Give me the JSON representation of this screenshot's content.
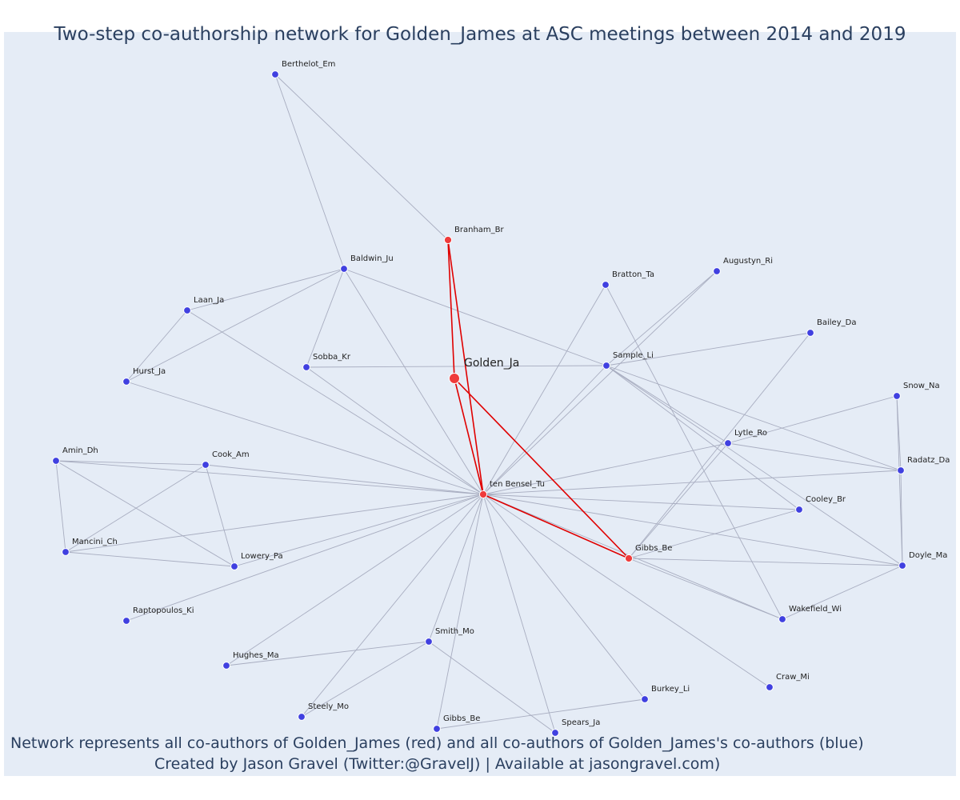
{
  "title": "Two-step co-authorship network for Golden_James at ASC meetings between 2014 and 2019",
  "footer": {
    "line1": "Network represents all co-authors of Golden_James (red) and all co-authors of Golden_James's co-authors (blue)",
    "line2": "Created by Jason Gravel (Twitter:@GravelJ) | Available at jasongravel.com)"
  },
  "colors": {
    "background": "#e5ecf6",
    "first_degree": "#ef3b3b",
    "second_degree": "#4040e0",
    "edge_red": "#e00000",
    "edge_gray": "#a8adc0"
  },
  "nodes": [
    {
      "id": "golden",
      "label": "Golden_Ja",
      "group": "center"
    },
    {
      "id": "tenbensel",
      "label": "ten Bensel_Tu",
      "group": "red"
    },
    {
      "id": "branham",
      "label": "Branham_Br",
      "group": "red"
    },
    {
      "id": "gibbs_be_r",
      "label": "Gibbs_Be",
      "group": "red"
    },
    {
      "id": "berthelot",
      "label": "Berthelot_Em",
      "group": "blue"
    },
    {
      "id": "baldwin",
      "label": "Baldwin_Ju",
      "group": "blue"
    },
    {
      "id": "laan",
      "label": "Laan_Ja",
      "group": "blue"
    },
    {
      "id": "hurst",
      "label": "Hurst_Ja",
      "group": "blue"
    },
    {
      "id": "sobba",
      "label": "Sobba_Kr",
      "group": "blue"
    },
    {
      "id": "bratton",
      "label": "Bratton_Ta",
      "group": "blue"
    },
    {
      "id": "augustyn",
      "label": "Augustyn_Ri",
      "group": "blue"
    },
    {
      "id": "bailey",
      "label": "Bailey_Da",
      "group": "blue"
    },
    {
      "id": "sample",
      "label": "Sample_Li",
      "group": "blue"
    },
    {
      "id": "snow",
      "label": "Snow_Na",
      "group": "blue"
    },
    {
      "id": "lytle",
      "label": "Lytle_Ro",
      "group": "blue"
    },
    {
      "id": "radatz",
      "label": "Radatz_Da",
      "group": "blue"
    },
    {
      "id": "cooley",
      "label": "Cooley_Br",
      "group": "blue"
    },
    {
      "id": "doyle",
      "label": "Doyle_Ma",
      "group": "blue"
    },
    {
      "id": "wakefield",
      "label": "Wakefield_Wi",
      "group": "blue"
    },
    {
      "id": "craw",
      "label": "Craw_Mi",
      "group": "blue"
    },
    {
      "id": "burkey",
      "label": "Burkey_Li",
      "group": "blue"
    },
    {
      "id": "spears",
      "label": "Spears_Ja",
      "group": "blue"
    },
    {
      "id": "gibbs_be_b",
      "label": "Gibbs_Be",
      "group": "blue"
    },
    {
      "id": "steely",
      "label": "Steely_Mo",
      "group": "blue"
    },
    {
      "id": "smith",
      "label": "Smith_Mo",
      "group": "blue"
    },
    {
      "id": "hughes",
      "label": "Hughes_Ma",
      "group": "blue"
    },
    {
      "id": "raptopoulos",
      "label": "Raptopoulos_Ki",
      "group": "blue"
    },
    {
      "id": "lowery",
      "label": "Lowery_Pa",
      "group": "blue"
    },
    {
      "id": "mancini",
      "label": "Mancini_Ch",
      "group": "blue"
    },
    {
      "id": "amin",
      "label": "Amin_Dh",
      "group": "blue"
    },
    {
      "id": "cook",
      "label": "Cook_Am",
      "group": "blue"
    }
  ],
  "edges": [
    [
      "golden",
      "tenbensel",
      "red"
    ],
    [
      "golden",
      "gibbs_be_r",
      "red"
    ],
    [
      "branham",
      "tenbensel",
      "red"
    ],
    [
      "branham",
      "golden",
      "red"
    ],
    [
      "tenbensel",
      "gibbs_be_r",
      "red"
    ],
    [
      "branham",
      "berthelot",
      "gray"
    ],
    [
      "berthelot",
      "baldwin",
      "gray"
    ],
    [
      "baldwin",
      "laan",
      "gray"
    ],
    [
      "baldwin",
      "hurst",
      "gray"
    ],
    [
      "baldwin",
      "sobba",
      "gray"
    ],
    [
      "baldwin",
      "tenbensel",
      "gray"
    ],
    [
      "baldwin",
      "sample",
      "gray"
    ],
    [
      "laan",
      "hurst",
      "gray"
    ],
    [
      "laan",
      "tenbensel",
      "gray"
    ],
    [
      "hurst",
      "tenbensel",
      "gray"
    ],
    [
      "sobba",
      "tenbensel",
      "gray"
    ],
    [
      "sobba",
      "sample",
      "gray"
    ],
    [
      "bratton",
      "tenbensel",
      "gray"
    ],
    [
      "bratton",
      "wakefield",
      "gray"
    ],
    [
      "augustyn",
      "tenbensel",
      "gray"
    ],
    [
      "augustyn",
      "sample",
      "gray"
    ],
    [
      "bailey",
      "sample",
      "gray"
    ],
    [
      "bailey",
      "gibbs_be_r",
      "gray"
    ],
    [
      "sample",
      "tenbensel",
      "gray"
    ],
    [
      "sample",
      "lytle",
      "gray"
    ],
    [
      "sample",
      "radatz",
      "gray"
    ],
    [
      "sample",
      "cooley",
      "gray"
    ],
    [
      "sample",
      "doyle",
      "gray"
    ],
    [
      "snow",
      "lytle",
      "gray"
    ],
    [
      "snow",
      "radatz",
      "gray"
    ],
    [
      "snow",
      "doyle",
      "gray"
    ],
    [
      "lytle",
      "tenbensel",
      "gray"
    ],
    [
      "lytle",
      "radatz",
      "gray"
    ],
    [
      "lytle",
      "gibbs_be_r",
      "gray"
    ],
    [
      "radatz",
      "tenbensel",
      "gray"
    ],
    [
      "radatz",
      "doyle",
      "gray"
    ],
    [
      "cooley",
      "tenbensel",
      "gray"
    ],
    [
      "cooley",
      "gibbs_be_r",
      "gray"
    ],
    [
      "doyle",
      "tenbensel",
      "gray"
    ],
    [
      "doyle",
      "gibbs_be_r",
      "gray"
    ],
    [
      "doyle",
      "wakefield",
      "gray"
    ],
    [
      "wakefield",
      "gibbs_be_r",
      "gray"
    ],
    [
      "wakefield",
      "tenbensel",
      "gray"
    ],
    [
      "craw",
      "tenbensel",
      "gray"
    ],
    [
      "burkey",
      "tenbensel",
      "gray"
    ],
    [
      "burkey",
      "gibbs_be_b",
      "gray"
    ],
    [
      "spears",
      "tenbensel",
      "gray"
    ],
    [
      "spears",
      "smith",
      "gray"
    ],
    [
      "gibbs_be_b",
      "tenbensel",
      "gray"
    ],
    [
      "steely",
      "tenbensel",
      "gray"
    ],
    [
      "steely",
      "smith",
      "gray"
    ],
    [
      "smith",
      "tenbensel",
      "gray"
    ],
    [
      "smith",
      "hughes",
      "gray"
    ],
    [
      "hughes",
      "tenbensel",
      "gray"
    ],
    [
      "raptopoulos",
      "tenbensel",
      "gray"
    ],
    [
      "lowery",
      "tenbensel",
      "gray"
    ],
    [
      "lowery",
      "mancini",
      "gray"
    ],
    [
      "lowery",
      "amin",
      "gray"
    ],
    [
      "lowery",
      "cook",
      "gray"
    ],
    [
      "mancini",
      "tenbensel",
      "gray"
    ],
    [
      "mancini",
      "amin",
      "gray"
    ],
    [
      "mancini",
      "cook",
      "gray"
    ],
    [
      "amin",
      "tenbensel",
      "gray"
    ],
    [
      "amin",
      "cook",
      "gray"
    ],
    [
      "cook",
      "tenbensel",
      "gray"
    ]
  ]
}
